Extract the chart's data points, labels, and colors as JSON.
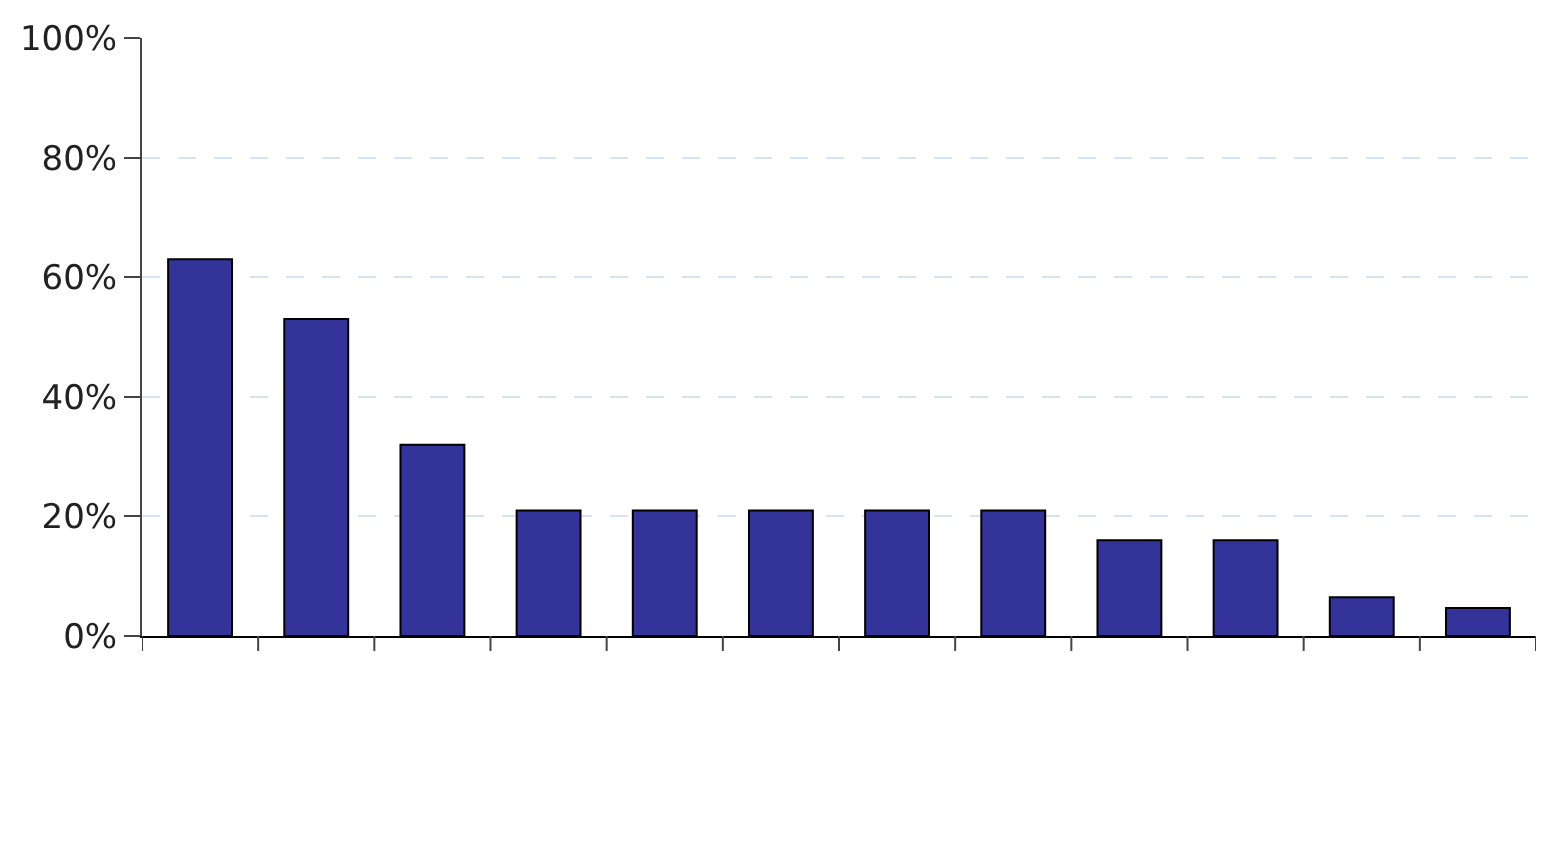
{
  "chart_data": {
    "type": "bar",
    "categories": [
      null,
      null,
      null,
      null,
      null,
      null,
      null,
      null,
      null,
      null,
      null,
      null
    ],
    "values": [
      63,
      53,
      32,
      21,
      21,
      21,
      21,
      21,
      16,
      16,
      6.5,
      4.7
    ],
    "color": "#333399",
    "ylim": [
      0,
      100
    ],
    "yticks": [
      {
        "value": 0,
        "label": "0%"
      },
      {
        "value": 20,
        "label": "20%"
      },
      {
        "value": 40,
        "label": "40%"
      },
      {
        "value": 60,
        "label": "60%"
      },
      {
        "value": 80,
        "label": "80%"
      },
      {
        "value": 100,
        "label": "100%"
      }
    ],
    "grid": "y",
    "tick_labels": "y"
  }
}
